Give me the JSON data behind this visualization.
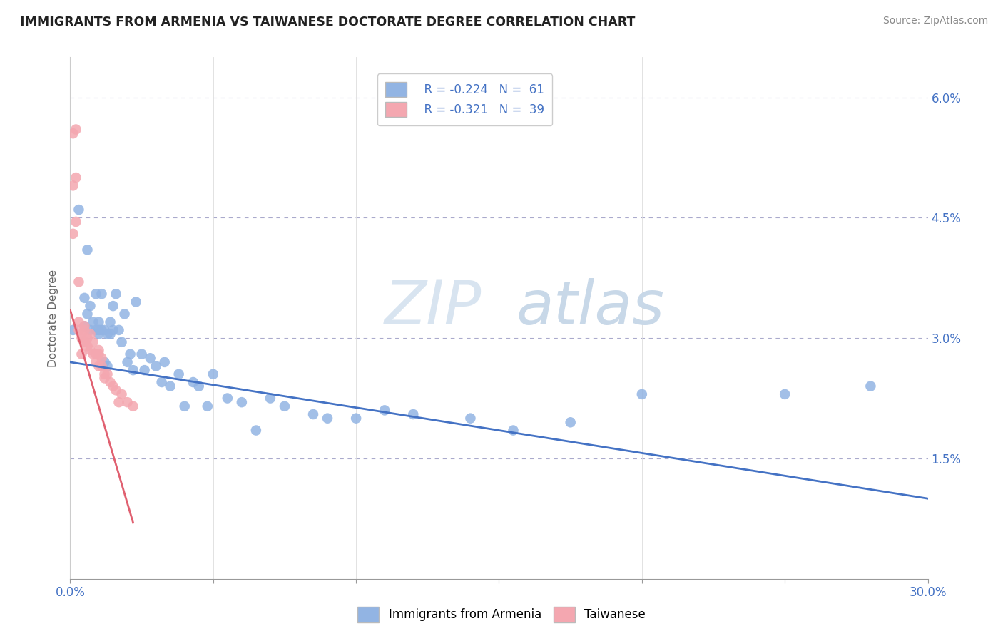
{
  "title": "IMMIGRANTS FROM ARMENIA VS TAIWANESE DOCTORATE DEGREE CORRELATION CHART",
  "source": "Source: ZipAtlas.com",
  "ylabel": "Doctorate Degree",
  "right_yticks": [
    "6.0%",
    "4.5%",
    "3.0%",
    "1.5%"
  ],
  "right_ytick_vals": [
    0.06,
    0.045,
    0.03,
    0.015
  ],
  "legend_r1": "R = -0.224",
  "legend_n1": "N =  61",
  "legend_r2": "R = -0.321",
  "legend_n2": "N =  39",
  "blue_color": "#92b4e3",
  "pink_color": "#f4a7b0",
  "blue_line_color": "#4472c4",
  "pink_line_color": "#e06070",
  "watermark_zip": "ZIP",
  "watermark_atlas": "atlas",
  "xlim": [
    0.0,
    0.3
  ],
  "ylim": [
    0.0,
    0.065
  ],
  "blue_scatter_x": [
    0.001,
    0.003,
    0.005,
    0.005,
    0.006,
    0.006,
    0.007,
    0.007,
    0.008,
    0.009,
    0.009,
    0.01,
    0.01,
    0.01,
    0.011,
    0.011,
    0.012,
    0.012,
    0.013,
    0.013,
    0.014,
    0.014,
    0.015,
    0.015,
    0.016,
    0.017,
    0.018,
    0.019,
    0.02,
    0.021,
    0.022,
    0.023,
    0.025,
    0.026,
    0.028,
    0.03,
    0.032,
    0.033,
    0.035,
    0.038,
    0.04,
    0.043,
    0.045,
    0.048,
    0.05,
    0.055,
    0.06,
    0.065,
    0.07,
    0.075,
    0.085,
    0.09,
    0.1,
    0.11,
    0.12,
    0.14,
    0.155,
    0.175,
    0.2,
    0.25,
    0.28
  ],
  "blue_scatter_y": [
    0.031,
    0.046,
    0.035,
    0.0315,
    0.041,
    0.033,
    0.031,
    0.034,
    0.032,
    0.0355,
    0.031,
    0.032,
    0.0305,
    0.031,
    0.031,
    0.0355,
    0.027,
    0.031,
    0.0305,
    0.0265,
    0.0305,
    0.032,
    0.034,
    0.031,
    0.0355,
    0.031,
    0.0295,
    0.033,
    0.027,
    0.028,
    0.026,
    0.0345,
    0.028,
    0.026,
    0.0275,
    0.0265,
    0.0245,
    0.027,
    0.024,
    0.0255,
    0.0215,
    0.0245,
    0.024,
    0.0215,
    0.0255,
    0.0225,
    0.022,
    0.0185,
    0.0225,
    0.0215,
    0.0205,
    0.02,
    0.02,
    0.021,
    0.0205,
    0.02,
    0.0185,
    0.0195,
    0.023,
    0.023,
    0.024
  ],
  "pink_scatter_x": [
    0.001,
    0.001,
    0.001,
    0.002,
    0.002,
    0.002,
    0.003,
    0.003,
    0.003,
    0.004,
    0.004,
    0.004,
    0.005,
    0.005,
    0.005,
    0.005,
    0.006,
    0.006,
    0.007,
    0.007,
    0.008,
    0.008,
    0.009,
    0.009,
    0.01,
    0.01,
    0.01,
    0.011,
    0.011,
    0.012,
    0.012,
    0.013,
    0.014,
    0.015,
    0.016,
    0.017,
    0.018,
    0.02,
    0.022
  ],
  "pink_scatter_y": [
    0.0555,
    0.049,
    0.043,
    0.056,
    0.05,
    0.0445,
    0.037,
    0.032,
    0.031,
    0.0305,
    0.03,
    0.028,
    0.0295,
    0.031,
    0.0315,
    0.0295,
    0.03,
    0.029,
    0.0305,
    0.0285,
    0.028,
    0.0295,
    0.028,
    0.027,
    0.0265,
    0.0285,
    0.028,
    0.0275,
    0.0265,
    0.0255,
    0.025,
    0.0255,
    0.0245,
    0.024,
    0.0235,
    0.022,
    0.023,
    0.022,
    0.0215
  ],
  "blue_trendline_x": [
    0.0,
    0.3
  ],
  "blue_trendline_y": [
    0.027,
    0.01
  ],
  "pink_trendline_x": [
    0.0,
    0.022
  ],
  "pink_trendline_y": [
    0.0335,
    0.007
  ]
}
